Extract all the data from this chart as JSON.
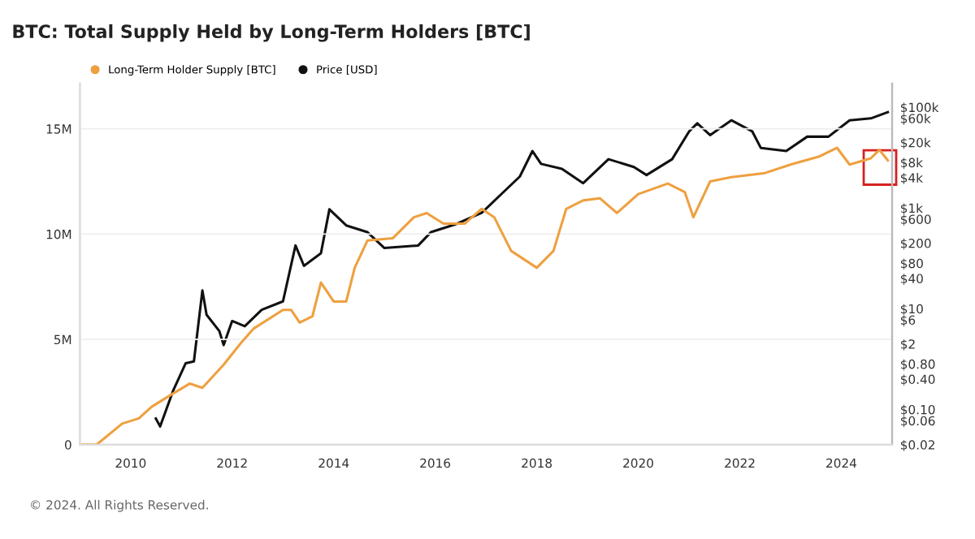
{
  "chart_data": {
    "type": "line",
    "title": "BTC: Total Supply Held by Long-Term Holders [BTC]",
    "annotations": [
      "© 2024. All Rights Reserved."
    ],
    "xlim": [
      "2009-01-01",
      "2025-01-01"
    ],
    "xticks": [
      {
        "value": "2010-01-01",
        "label": "2010"
      },
      {
        "value": "2012-01-01",
        "label": "2012"
      },
      {
        "value": "2014-01-01",
        "label": "2014"
      },
      {
        "value": "2016-01-01",
        "label": "2016"
      },
      {
        "value": "2018-01-01",
        "label": "2018"
      },
      {
        "value": "2020-01-01",
        "label": "2020"
      },
      {
        "value": "2022-01-01",
        "label": "2022"
      },
      {
        "value": "2024-01-01",
        "label": "2024"
      }
    ],
    "ylim": [
      0,
      17150000
    ],
    "yticks": [
      0,
      {
        "value": 5000000,
        "label": "5M"
      },
      {
        "value": 10000000,
        "label": "10M"
      },
      {
        "value": 15000000,
        "label": "15M"
      }
    ],
    "y2lim": [
      0.02,
      295000
    ],
    "y2ticks": [
      {
        "value": 0.02,
        "label": "$0.02"
      },
      {
        "value": 0.06,
        "label": "$0.06"
      },
      {
        "value": 0.1,
        "label": "$0.10"
      },
      {
        "value": 0.4,
        "label": "$0.40"
      },
      {
        "value": 0.8,
        "label": "$0.80"
      },
      {
        "value": 2,
        "label": "$2"
      },
      {
        "value": 6,
        "label": "$6"
      },
      {
        "value": 10,
        "label": "$10"
      },
      {
        "value": 40,
        "label": "$40"
      },
      {
        "value": 80,
        "label": "$80"
      },
      {
        "value": 200,
        "label": "$200"
      },
      {
        "value": 600,
        "label": "$600"
      },
      {
        "value": 1000,
        "label": "$1k"
      },
      {
        "value": 4000,
        "label": "$4k"
      },
      {
        "value": 8000,
        "label": "$8k"
      },
      {
        "value": 20000,
        "label": "$20k"
      },
      {
        "value": 60000,
        "label": "$60k"
      },
      {
        "value": 100000,
        "label": "$100k"
      }
    ],
    "log": "y2",
    "grid": "y",
    "legend": "top left",
    "marker": "none",
    "line_style": "solid",
    "series": [
      {
        "name": "Long-Term Holder Supply [BTC]",
        "color": "#eea040",
        "x": [
          "2009-01",
          "2009-05",
          "2009-11",
          "2010-03",
          "2010-06",
          "2010-10",
          "2011-03",
          "2011-06",
          "2011-11",
          "2012-03",
          "2012-06",
          "2013-01",
          "2013-03",
          "2013-05",
          "2013-08",
          "2013-10",
          "2014-01",
          "2014-04",
          "2014-06",
          "2014-09",
          "2015-03",
          "2015-08",
          "2015-11",
          "2016-03",
          "2016-08",
          "2016-12",
          "2017-03",
          "2017-07",
          "2018-01",
          "2018-05",
          "2018-08",
          "2018-12",
          "2019-04",
          "2019-08",
          "2020-01",
          "2020-08",
          "2020-12",
          "2021-02",
          "2021-06",
          "2021-11",
          "2022-07",
          "2023-01",
          "2023-08",
          "2023-12",
          "2024-03",
          "2024-08",
          "2024-10",
          "2024-12"
        ],
        "values": [
          0,
          0,
          1000000,
          1250000,
          1800000,
          2300000,
          2900000,
          2700000,
          3800000,
          4800000,
          5500000,
          6400000,
          6400000,
          5800000,
          6100000,
          7700000,
          6800000,
          6800000,
          8400000,
          9700000,
          9800000,
          10800000,
          11000000,
          10500000,
          10500000,
          11200000,
          10800000,
          9200000,
          8400000,
          9200000,
          11200000,
          11600000,
          11700000,
          11000000,
          11900000,
          12400000,
          12000000,
          10800000,
          12500000,
          12700000,
          12900000,
          13300000,
          13700000,
          14100000,
          13300000,
          13600000,
          14000000,
          13500000
        ]
      },
      {
        "name": "Price [USD]",
        "color": "#111111",
        "axis": "y2",
        "x": [
          "2010-07",
          "2010-08",
          "2010-11",
          "2011-02",
          "2011-04",
          "2011-06",
          "2011-07",
          "2011-10",
          "2011-11",
          "2012-01",
          "2012-04",
          "2012-08",
          "2013-01",
          "2013-04",
          "2013-06",
          "2013-10",
          "2013-12",
          "2014-04",
          "2014-09",
          "2015-01",
          "2015-09",
          "2015-12",
          "2016-06",
          "2016-12",
          "2017-05",
          "2017-09",
          "2017-12",
          "2018-02",
          "2018-07",
          "2018-12",
          "2019-06",
          "2019-12",
          "2020-03",
          "2020-09",
          "2021-01",
          "2021-03",
          "2021-06",
          "2021-11",
          "2022-04",
          "2022-06",
          "2022-12",
          "2023-05",
          "2023-10",
          "2024-03",
          "2024-08",
          "2024-12"
        ],
        "values": [
          0.066,
          0.046,
          0.23,
          0.83,
          0.9,
          23,
          7.6,
          3.6,
          1.9,
          5.7,
          4.5,
          9.5,
          14,
          180,
          71,
          126,
          940,
          450,
          330,
          160,
          180,
          330,
          480,
          800,
          2000,
          4200,
          13500,
          7500,
          6000,
          3100,
          9300,
          6500,
          4500,
          9300,
          33000,
          48000,
          28000,
          55000,
          33000,
          15600,
          13500,
          26000,
          26000,
          55000,
          60000,
          80000
        ]
      }
    ]
  }
}
